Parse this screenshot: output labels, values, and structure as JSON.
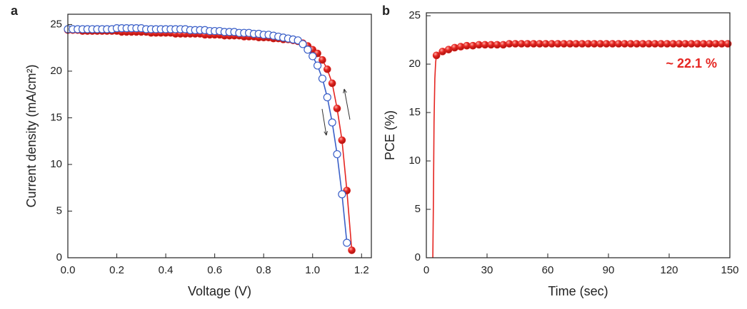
{
  "chart_data": [
    {
      "type": "line",
      "panel": "a",
      "xlabel": "Voltage (V)",
      "ylabel": "Current density (mA/cm²)",
      "xlim": [
        0,
        1.24
      ],
      "xticks": [
        {
          "value": 0,
          "label": "0.0"
        },
        0.2,
        0.4,
        0.6,
        0.8,
        {
          "value": 1,
          "label": "1.0"
        },
        1.2
      ],
      "ylim": [
        0,
        26.1
      ],
      "yticks": [
        0,
        5,
        10,
        15,
        20,
        25
      ],
      "series": [
        {
          "color": "#e52521",
          "marker": "filled",
          "x": [
            0,
            0.02,
            0.04,
            0.06,
            0.08,
            0.1,
            0.12,
            0.14,
            0.16,
            0.18,
            0.2,
            0.22,
            0.24,
            0.26,
            0.28,
            0.3,
            0.32,
            0.34,
            0.36,
            0.38,
            0.4,
            0.42,
            0.44,
            0.46,
            0.48,
            0.5,
            0.52,
            0.54,
            0.56,
            0.58,
            0.6,
            0.62,
            0.64,
            0.66,
            0.68,
            0.7,
            0.72,
            0.74,
            0.76,
            0.78,
            0.8,
            0.82,
            0.84,
            0.86,
            0.88,
            0.9,
            0.92,
            0.94,
            0.96,
            0.98,
            1,
            1.02,
            1.04,
            1.06,
            1.08,
            1.1,
            1.12,
            1.14,
            1.16
          ],
          "values": [
            24.4,
            24.4,
            24.4,
            24.3,
            24.3,
            24.3,
            24.3,
            24.3,
            24.3,
            24.3,
            24.3,
            24.2,
            24.2,
            24.2,
            24.2,
            24.2,
            24.2,
            24.1,
            24.1,
            24.1,
            24.1,
            24.1,
            24.0,
            24.0,
            24.0,
            24.0,
            24.0,
            24.0,
            23.9,
            23.9,
            23.9,
            23.9,
            23.8,
            23.8,
            23.8,
            23.8,
            23.7,
            23.7,
            23.7,
            23.6,
            23.6,
            23.6,
            23.5,
            23.5,
            23.4,
            23.4,
            23.3,
            23.2,
            23.0,
            22.7,
            22.3,
            21.9,
            21.2,
            20.2,
            18.7,
            16.0,
            12.6,
            7.2,
            0.8
          ]
        },
        {
          "color": "#3a5fc8",
          "marker": "open",
          "x": [
            0,
            0.02,
            0.04,
            0.06,
            0.08,
            0.1,
            0.12,
            0.14,
            0.16,
            0.18,
            0.2,
            0.22,
            0.24,
            0.26,
            0.28,
            0.3,
            0.32,
            0.34,
            0.36,
            0.38,
            0.4,
            0.42,
            0.44,
            0.46,
            0.48,
            0.5,
            0.52,
            0.54,
            0.56,
            0.58,
            0.6,
            0.62,
            0.64,
            0.66,
            0.68,
            0.7,
            0.72,
            0.74,
            0.76,
            0.78,
            0.8,
            0.82,
            0.84,
            0.86,
            0.88,
            0.9,
            0.92,
            0.94,
            0.96,
            0.98,
            1,
            1.02,
            1.04,
            1.06,
            1.08,
            1.1,
            1.12,
            1.14
          ],
          "values": [
            24.5,
            24.5,
            24.5,
            24.5,
            24.5,
            24.5,
            24.5,
            24.5,
            24.5,
            24.5,
            24.6,
            24.6,
            24.6,
            24.6,
            24.6,
            24.6,
            24.5,
            24.5,
            24.5,
            24.5,
            24.5,
            24.5,
            24.5,
            24.5,
            24.5,
            24.4,
            24.4,
            24.4,
            24.4,
            24.3,
            24.3,
            24.3,
            24.2,
            24.2,
            24.2,
            24.1,
            24.1,
            24.1,
            24.0,
            24.0,
            23.9,
            23.9,
            23.8,
            23.7,
            23.6,
            23.5,
            23.4,
            23.3,
            22.9,
            22.3,
            21.6,
            20.6,
            19.2,
            17.2,
            14.5,
            11.1,
            6.8,
            1.6
          ]
        }
      ]
    },
    {
      "type": "line",
      "panel": "b",
      "xlabel": "Time (sec)",
      "ylabel": "PCE (%)",
      "annotation": "~ 22.1 %",
      "xlim": [
        0,
        150
      ],
      "xticks": [
        0,
        30,
        60,
        90,
        120,
        150
      ],
      "ylim": [
        0,
        25.3
      ],
      "yticks": [
        0,
        5,
        10,
        15,
        20,
        25
      ],
      "series": [
        {
          "color": "#e52521",
          "x": [
            3.2,
            3.5,
            3.8,
            4.2,
            4.6,
            5
          ],
          "values": [
            0,
            6,
            14,
            18.5,
            20.2,
            20.9
          ]
        },
        {
          "color": "#e52521",
          "marker": "filled",
          "x": [
            5,
            8,
            11,
            14,
            17,
            20,
            23,
            26,
            29,
            32,
            35,
            38,
            41,
            44,
            47,
            50,
            53,
            56,
            59,
            62,
            65,
            68,
            71,
            74,
            77,
            80,
            83,
            86,
            89,
            92,
            95,
            98,
            101,
            104,
            107,
            110,
            113,
            116,
            119,
            122,
            125,
            128,
            131,
            134,
            137,
            140,
            143,
            146,
            149
          ],
          "values": [
            20.9,
            21.3,
            21.5,
            21.7,
            21.8,
            21.9,
            21.9,
            22.0,
            22.0,
            22.0,
            22.0,
            22.0,
            22.1,
            22.1,
            22.1,
            22.1,
            22.1,
            22.1,
            22.1,
            22.1,
            22.1,
            22.1,
            22.1,
            22.1,
            22.1,
            22.1,
            22.1,
            22.1,
            22.1,
            22.1,
            22.1,
            22.1,
            22.1,
            22.1,
            22.1,
            22.1,
            22.1,
            22.1,
            22.1,
            22.1,
            22.1,
            22.1,
            22.1,
            22.1,
            22.1,
            22.1,
            22.1,
            22.1,
            22.1
          ]
        }
      ]
    }
  ]
}
